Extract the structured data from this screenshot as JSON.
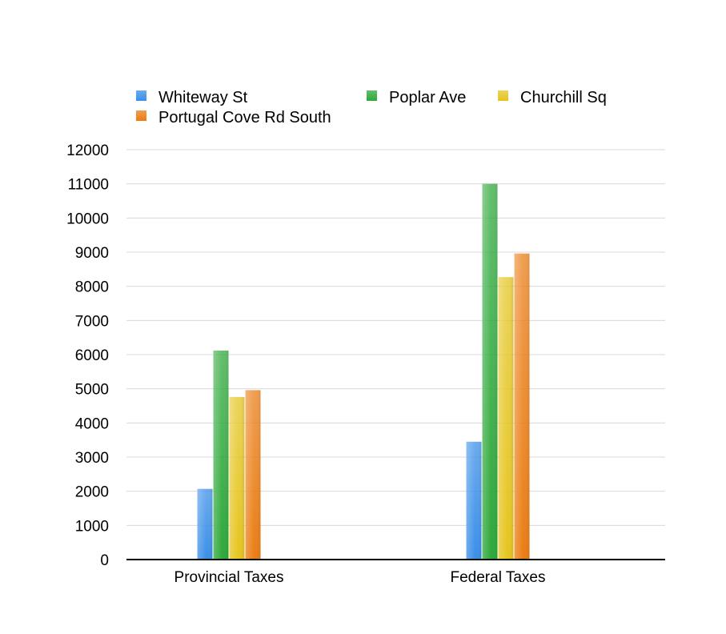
{
  "chart_data": {
    "type": "bar",
    "title": "",
    "xlabel": "",
    "ylabel": "",
    "categories": [
      "Provincial Taxes",
      "Federal Taxes"
    ],
    "series": [
      {
        "name": "Whiteway St",
        "values": [
          2070,
          3450
        ],
        "color": "#3a8fe8"
      },
      {
        "name": "Poplar Ave",
        "values": [
          6120,
          11000
        ],
        "color": "#2ea83a"
      },
      {
        "name": "Churchill Sq",
        "values": [
          4760,
          8270
        ],
        "color": "#e5c51f"
      },
      {
        "name": "Portugal Cove Rd South",
        "values": [
          4960,
          8960
        ],
        "color": "#ea7d14"
      }
    ],
    "ylim": [
      0,
      12000
    ],
    "yticks": [
      0,
      1000,
      2000,
      3000,
      4000,
      5000,
      6000,
      7000,
      8000,
      9000,
      10000,
      11000,
      12000
    ],
    "grid": true,
    "legend": "top"
  }
}
